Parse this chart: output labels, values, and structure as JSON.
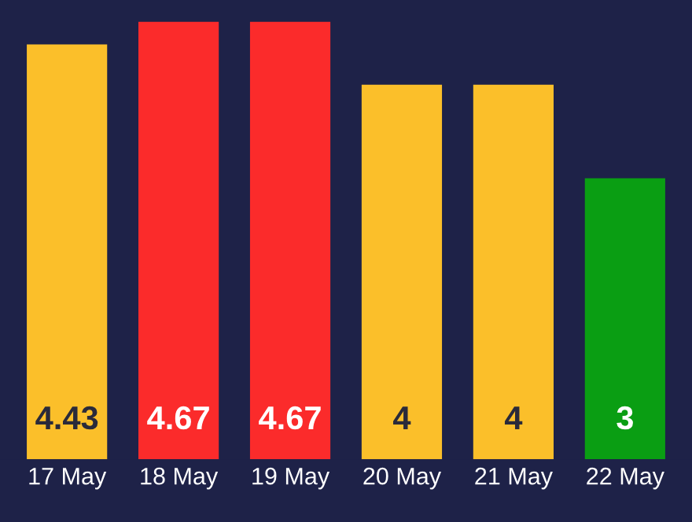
{
  "chart_data": {
    "type": "bar",
    "categories": [
      "17 May",
      "18 May",
      "19 May",
      "20 May",
      "21 May",
      "22 May"
    ],
    "values": [
      4.43,
      4.67,
      4.67,
      4,
      4,
      3
    ],
    "colors": [
      "#fbbf2a",
      "#fb2b2b",
      "#fb2b2b",
      "#fbbf2a",
      "#fbbf2a",
      "#0a9e13"
    ],
    "data_labels": true,
    "tick_labels": "x"
  }
}
